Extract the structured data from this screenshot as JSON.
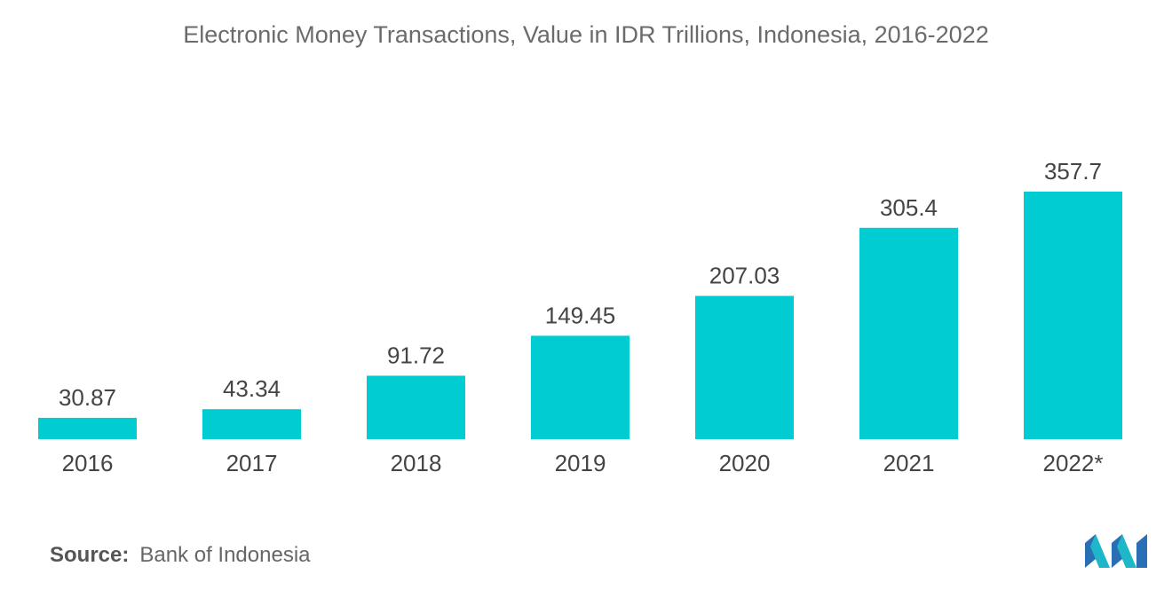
{
  "title": "Electronic Money Transactions, Value in IDR Trillions, Indonesia, 2016-2022",
  "source": {
    "label": "Source:",
    "text": "Bank of Indonesia"
  },
  "logo": {
    "icon": "mordor-intelligence-logo-icon"
  },
  "colors": {
    "bar": "#00ccd1",
    "text": "#444444"
  },
  "chart_data": {
    "type": "bar",
    "categories": [
      "2016",
      "2017",
      "2018",
      "2019",
      "2020",
      "2021",
      "2022*"
    ],
    "values": [
      30.87,
      43.34,
      91.72,
      149.45,
      207.03,
      305.4,
      357.7
    ],
    "value_labels": [
      "30.87",
      "43.34",
      "91.72",
      "149.45",
      "207.03",
      "305.4",
      "357.7"
    ],
    "title": "Electronic Money Transactions, Value in IDR Trillions, Indonesia, 2016-2022",
    "xlabel": "",
    "ylabel": "",
    "ylim": [
      0,
      357.7
    ],
    "grid": false,
    "legend": "none"
  }
}
